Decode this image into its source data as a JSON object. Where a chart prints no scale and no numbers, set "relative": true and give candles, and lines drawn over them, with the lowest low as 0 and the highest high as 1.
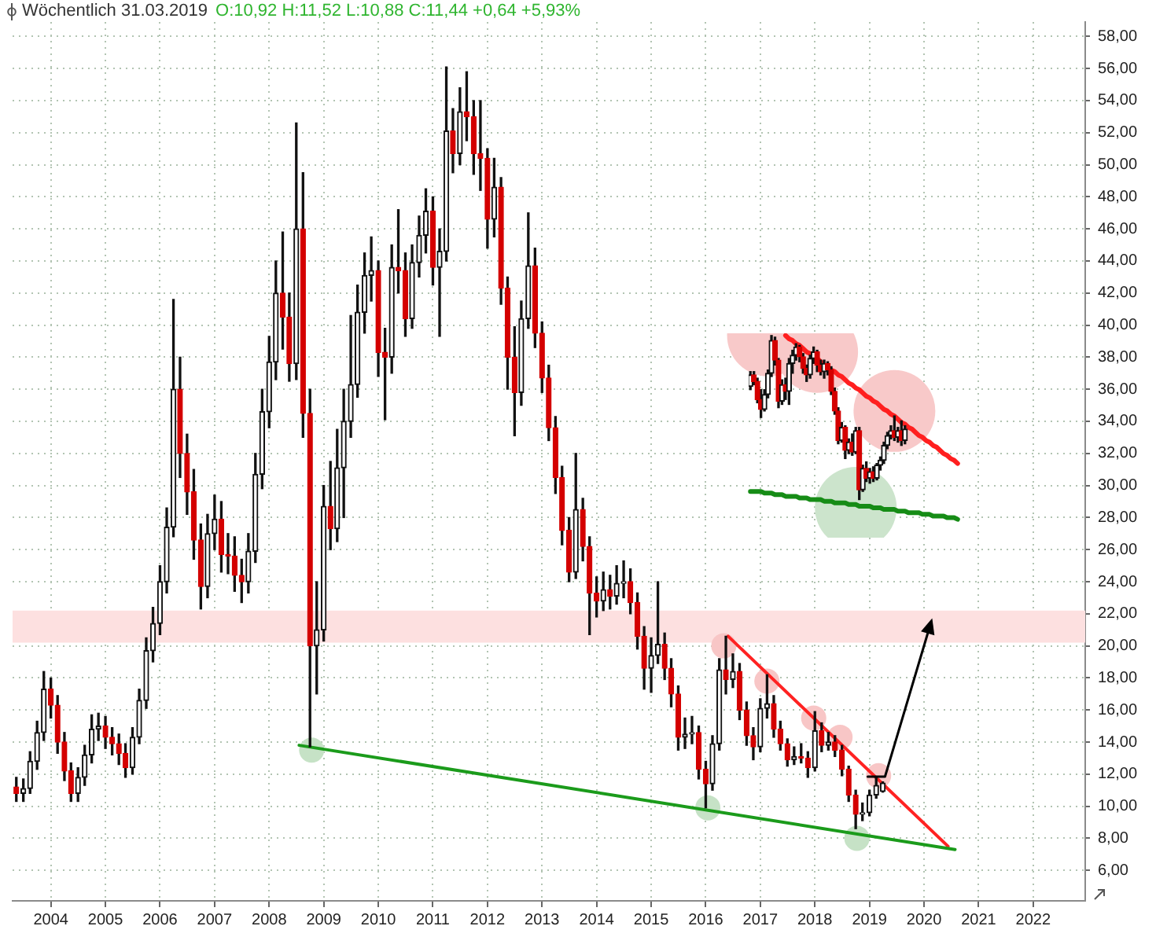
{
  "chart_data": [
    {
      "type": "candlestick",
      "title": "Wöchentlich 31.03.2019",
      "subtitle": "O:10,92 H:11,52 L:10,88 C:11,44 +0,64 +5,93%",
      "x": [
        "2003-05-15",
        "2003-07-01",
        "2003-08-15",
        "2003-10-01",
        "2003-11-15",
        "2004-01-01",
        "2004-02-15",
        "2004-04-01",
        "2004-05-15",
        "2004-07-01",
        "2004-08-15",
        "2004-10-01",
        "2004-11-15",
        "2005-01-01",
        "2005-02-15",
        "2005-04-01",
        "2005-05-15",
        "2005-07-01",
        "2005-08-15",
        "2005-10-01",
        "2005-11-15",
        "2006-01-01",
        "2006-02-15",
        "2006-04-01",
        "2006-05-15",
        "2006-07-01",
        "2006-08-15",
        "2006-10-01",
        "2006-11-15",
        "2007-01-01",
        "2007-02-15",
        "2007-04-01",
        "2007-05-15",
        "2007-07-01",
        "2007-08-15",
        "2007-10-01",
        "2007-11-15",
        "2008-01-01",
        "2008-02-15",
        "2008-04-01",
        "2008-05-15",
        "2008-07-01",
        "2008-08-15",
        "2008-10-01",
        "2008-11-15",
        "2009-01-01",
        "2009-02-15",
        "2009-04-01",
        "2009-05-15",
        "2009-07-01",
        "2009-08-15",
        "2009-10-01",
        "2009-11-15",
        "2010-01-01",
        "2010-02-15",
        "2010-04-01",
        "2010-05-15",
        "2010-07-01",
        "2010-08-15",
        "2010-10-01",
        "2010-11-15",
        "2011-01-01",
        "2011-02-15",
        "2011-04-01",
        "2011-05-15",
        "2011-07-01",
        "2011-08-15",
        "2011-10-01",
        "2011-11-15",
        "2012-01-01",
        "2012-02-15",
        "2012-04-01",
        "2012-05-15",
        "2012-07-01",
        "2012-08-15",
        "2012-10-01",
        "2012-11-15",
        "2013-01-01",
        "2013-02-15",
        "2013-04-01",
        "2013-05-15",
        "2013-07-01",
        "2013-08-15",
        "2013-10-01",
        "2013-11-15",
        "2014-01-01",
        "2014-02-15",
        "2014-04-01",
        "2014-05-15",
        "2014-07-01",
        "2014-08-15",
        "2014-10-01",
        "2014-11-15",
        "2015-01-01",
        "2015-02-15",
        "2015-04-01",
        "2015-05-15",
        "2015-07-01",
        "2015-08-15",
        "2015-10-01",
        "2015-11-15",
        "2016-01-01",
        "2016-02-15",
        "2016-04-01",
        "2016-05-15",
        "2016-07-01",
        "2016-08-15",
        "2016-10-01",
        "2016-11-15",
        "2017-01-01",
        "2017-02-15",
        "2017-04-01",
        "2017-05-15",
        "2017-07-01",
        "2017-08-15",
        "2017-10-01",
        "2017-11-15",
        "2018-01-01",
        "2018-02-15",
        "2018-04-01",
        "2018-05-15",
        "2018-07-01",
        "2018-08-15",
        "2018-10-01",
        "2018-11-15",
        "2019-01-01",
        "2019-02-15",
        "2019-03-31"
      ],
      "ohlc": [
        [
          11.2,
          11.8,
          10.3,
          10.8
        ],
        [
          10.8,
          11.7,
          10.3,
          11.1
        ],
        [
          11.1,
          13.4,
          10.8,
          12.8
        ],
        [
          12.8,
          15.3,
          12.3,
          14.6
        ],
        [
          14.6,
          18.4,
          14.1,
          17.3
        ],
        [
          17.3,
          18.0,
          15.5,
          16.3
        ],
        [
          16.3,
          16.9,
          13.3,
          14.0
        ],
        [
          14.0,
          14.6,
          11.6,
          12.2
        ],
        [
          12.2,
          12.7,
          10.3,
          10.8
        ],
        [
          10.8,
          12.4,
          10.3,
          11.8
        ],
        [
          11.8,
          13.8,
          11.3,
          13.2
        ],
        [
          13.2,
          15.7,
          12.7,
          14.8
        ],
        [
          14.8,
          15.8,
          14.1,
          15.0
        ],
        [
          15.0,
          15.6,
          13.6,
          14.3
        ],
        [
          14.3,
          14.9,
          13.2,
          13.9
        ],
        [
          13.9,
          14.5,
          12.6,
          13.3
        ],
        [
          13.3,
          13.9,
          11.8,
          12.4
        ],
        [
          12.4,
          14.9,
          12.0,
          14.3
        ],
        [
          14.3,
          17.3,
          13.9,
          16.6
        ],
        [
          16.6,
          20.5,
          16.1,
          19.7
        ],
        [
          19.7,
          22.4,
          19.0,
          21.4
        ],
        [
          21.4,
          25.0,
          20.7,
          24.0
        ],
        [
          24.0,
          28.6,
          23.3,
          27.4
        ],
        [
          27.4,
          41.6,
          26.8,
          36.0
        ],
        [
          36.0,
          38.0,
          30.5,
          32.0
        ],
        [
          32.0,
          33.2,
          28.2,
          29.6
        ],
        [
          29.6,
          31.0,
          25.4,
          26.6
        ],
        [
          26.6,
          27.6,
          22.3,
          23.7
        ],
        [
          23.7,
          28.2,
          23.0,
          27.0
        ],
        [
          27.0,
          29.4,
          26.0,
          27.9
        ],
        [
          27.9,
          29.0,
          24.6,
          25.7
        ],
        [
          25.7,
          27.0,
          24.5,
          25.6
        ],
        [
          25.6,
          26.8,
          23.4,
          24.4
        ],
        [
          24.4,
          25.4,
          22.7,
          24.0
        ],
        [
          24.0,
          27.0,
          23.3,
          25.9
        ],
        [
          25.9,
          32.0,
          25.2,
          30.7
        ],
        [
          30.7,
          36.0,
          29.8,
          34.6
        ],
        [
          34.6,
          39.3,
          33.6,
          37.7
        ],
        [
          37.7,
          44.0,
          36.6,
          42.0
        ],
        [
          42.0,
          45.8,
          38.5,
          40.5
        ],
        [
          40.5,
          42.0,
          36.5,
          37.6
        ],
        [
          37.6,
          52.6,
          36.6,
          46.0
        ],
        [
          46.0,
          49.5,
          33.0,
          34.5
        ],
        [
          34.5,
          36.0,
          13.7,
          20.0
        ],
        [
          20.0,
          24.0,
          17.0,
          21.0
        ],
        [
          21.0,
          30.0,
          20.3,
          28.7
        ],
        [
          28.7,
          31.5,
          26.0,
          27.3
        ],
        [
          27.3,
          33.5,
          26.5,
          31.1
        ],
        [
          31.1,
          36.0,
          28.0,
          34.0
        ],
        [
          34.0,
          40.6,
          33.0,
          36.3
        ],
        [
          36.3,
          42.5,
          35.5,
          40.8
        ],
        [
          40.8,
          44.5,
          39.5,
          43.1
        ],
        [
          43.1,
          45.5,
          41.5,
          43.4
        ],
        [
          43.4,
          44.0,
          36.8,
          38.3
        ],
        [
          38.3,
          39.8,
          34.1,
          38.0
        ],
        [
          38.0,
          45.0,
          37.0,
          43.6
        ],
        [
          43.6,
          47.2,
          42.0,
          43.4
        ],
        [
          43.4,
          44.5,
          39.3,
          40.4
        ],
        [
          40.4,
          45.0,
          39.8,
          43.9
        ],
        [
          43.9,
          46.8,
          43.0,
          45.6
        ],
        [
          45.6,
          48.5,
          44.5,
          47.1
        ],
        [
          47.1,
          48.0,
          42.5,
          43.6
        ],
        [
          43.6,
          46.0,
          39.3,
          44.6
        ],
        [
          44.6,
          56.1,
          44.0,
          52.1
        ],
        [
          52.1,
          53.5,
          49.5,
          50.7
        ],
        [
          50.7,
          54.8,
          50.0,
          53.3
        ],
        [
          53.3,
          55.8,
          51.5,
          53.0
        ],
        [
          53.0,
          54.0,
          49.4,
          50.7
        ],
        [
          50.7,
          54.0,
          48.4,
          50.4
        ],
        [
          50.4,
          51.0,
          44.8,
          46.6
        ],
        [
          46.6,
          50.4,
          45.5,
          48.6
        ],
        [
          48.6,
          49.2,
          41.3,
          42.3
        ],
        [
          42.3,
          43.0,
          36.0,
          38.0
        ],
        [
          38.0,
          39.9,
          33.1,
          35.8
        ],
        [
          35.8,
          41.5,
          35.0,
          40.4
        ],
        [
          40.4,
          47.0,
          39.8,
          43.7
        ],
        [
          43.7,
          44.8,
          38.6,
          39.5
        ],
        [
          39.5,
          40.2,
          35.8,
          36.7
        ],
        [
          36.7,
          37.5,
          32.8,
          33.6
        ],
        [
          33.6,
          34.3,
          29.5,
          30.5
        ],
        [
          30.5,
          31.2,
          26.3,
          27.2
        ],
        [
          27.2,
          28.0,
          24.0,
          24.6
        ],
        [
          24.6,
          32.0,
          24.2,
          28.5
        ],
        [
          28.5,
          29.2,
          25.3,
          26.2
        ],
        [
          26.2,
          26.8,
          20.7,
          23.3
        ],
        [
          23.3,
          24.3,
          21.8,
          22.8
        ],
        [
          22.8,
          24.6,
          22.2,
          23.5
        ],
        [
          23.5,
          24.4,
          22.3,
          23.1
        ],
        [
          23.1,
          25.0,
          22.6,
          23.9
        ],
        [
          23.9,
          25.3,
          23.0,
          24.0
        ],
        [
          24.0,
          24.8,
          22.0,
          22.7
        ],
        [
          22.7,
          23.3,
          19.8,
          20.6
        ],
        [
          20.6,
          21.2,
          17.3,
          18.6
        ],
        [
          18.6,
          20.5,
          17.1,
          19.4
        ],
        [
          19.4,
          24.0,
          18.9,
          20.1
        ],
        [
          20.1,
          20.8,
          17.9,
          18.6
        ],
        [
          18.6,
          19.2,
          16.2,
          17.0
        ],
        [
          17.0,
          17.5,
          13.5,
          14.3
        ],
        [
          14.3,
          15.5,
          13.6,
          14.5
        ],
        [
          14.5,
          15.6,
          13.9,
          14.6
        ],
        [
          14.6,
          15.0,
          11.7,
          12.3
        ],
        [
          12.3,
          12.8,
          9.9,
          11.4
        ],
        [
          11.4,
          14.4,
          11.0,
          13.9
        ],
        [
          13.9,
          19.2,
          13.5,
          18.5
        ],
        [
          18.5,
          20.6,
          17.0,
          17.9
        ],
        [
          17.9,
          19.5,
          17.4,
          18.4
        ],
        [
          18.4,
          18.9,
          15.4,
          16.0
        ],
        [
          16.0,
          16.5,
          13.8,
          14.4
        ],
        [
          14.4,
          14.9,
          12.9,
          13.7
        ],
        [
          13.7,
          16.7,
          13.4,
          16.1
        ],
        [
          16.1,
          18.2,
          15.5,
          16.4
        ],
        [
          16.4,
          16.9,
          14.3,
          14.8
        ],
        [
          14.8,
          15.3,
          13.5,
          13.9
        ],
        [
          13.9,
          14.2,
          12.5,
          12.9
        ],
        [
          12.9,
          13.7,
          12.6,
          13.1
        ],
        [
          13.1,
          13.9,
          12.7,
          13.0
        ],
        [
          13.0,
          13.4,
          11.8,
          12.4
        ],
        [
          12.4,
          15.9,
          12.2,
          14.7
        ],
        [
          14.7,
          15.2,
          13.4,
          13.8
        ],
        [
          13.8,
          14.6,
          13.5,
          14.0
        ],
        [
          14.0,
          14.4,
          13.1,
          13.5
        ],
        [
          13.5,
          13.8,
          11.9,
          12.3
        ],
        [
          12.3,
          12.5,
          10.3,
          10.7
        ],
        [
          10.7,
          11.0,
          8.6,
          9.5
        ],
        [
          9.5,
          10.2,
          9.1,
          9.6
        ],
        [
          9.6,
          11.0,
          9.4,
          10.7
        ],
        [
          10.7,
          11.8,
          10.5,
          11.3
        ],
        [
          10.92,
          11.52,
          10.88,
          11.44
        ]
      ],
      "colors": [
        "#d40000",
        "#111111",
        "#111111",
        "#111111",
        "#111111",
        "#d40000",
        "#d40000",
        "#d40000",
        "#d40000",
        "#111111",
        "#111111",
        "#111111",
        "#111111",
        "#d40000",
        "#d40000",
        "#d40000",
        "#d40000",
        "#111111",
        "#111111",
        "#111111",
        "#111111",
        "#111111",
        "#111111",
        "#111111",
        "#d40000",
        "#d40000",
        "#d40000",
        "#d40000",
        "#111111",
        "#111111",
        "#d40000",
        "#d40000",
        "#d40000",
        "#d40000",
        "#111111",
        "#111111",
        "#111111",
        "#111111",
        "#111111",
        "#d40000",
        "#d40000",
        "#111111",
        "#d40000",
        "#d40000",
        "#111111",
        "#111111",
        "#d40000",
        "#111111",
        "#111111",
        "#111111",
        "#111111",
        "#111111",
        "#111111",
        "#d40000",
        "#d40000",
        "#111111",
        "#d40000",
        "#d40000",
        "#111111",
        "#111111",
        "#111111",
        "#d40000",
        "#111111",
        "#111111",
        "#d40000",
        "#111111",
        "#d40000",
        "#d40000",
        "#d40000",
        "#d40000",
        "#111111",
        "#d40000",
        "#d40000",
        "#d40000",
        "#111111",
        "#111111",
        "#d40000",
        "#d40000",
        "#d40000",
        "#d40000",
        "#d40000",
        "#d40000",
        "#111111",
        "#d40000",
        "#d40000",
        "#d40000",
        "#111111",
        "#d40000",
        "#111111",
        "#111111",
        "#d40000",
        "#d40000",
        "#d40000",
        "#111111",
        "#111111",
        "#d40000",
        "#d40000",
        "#d40000",
        "#111111",
        "#111111",
        "#d40000",
        "#d40000",
        "#111111",
        "#111111",
        "#d40000",
        "#111111",
        "#d40000",
        "#d40000",
        "#d40000",
        "#111111",
        "#111111",
        "#d40000",
        "#d40000",
        "#d40000",
        "#111111",
        "#d40000",
        "#d40000",
        "#111111",
        "#d40000",
        "#111111",
        "#d40000",
        "#d40000",
        "#d40000",
        "#d40000",
        "#111111",
        "#111111",
        "#111111",
        "#111111"
      ],
      "series": [
        {
          "type": "line",
          "color": "#1b9b1b",
          "x": [
            "2008-07-20",
            "2020-07-27"
          ],
          "values": [
            13.8,
            7.3
          ]
        },
        {
          "type": "line",
          "color": "#ff2222",
          "x": [
            "2016-05-30",
            "2020-06-10"
          ],
          "values": [
            20.6,
            7.5
          ]
        },
        {
          "type": "scatter",
          "color": "#f8c6c6",
          "marker": "circle",
          "x": [
            "2016-05-01",
            "2017-02-14",
            "2017-12-24",
            "2018-06-18",
            "2019-03-03"
          ],
          "values": [
            20.0,
            17.8,
            15.5,
            14.3,
            11.9
          ]
        },
        {
          "type": "scatter",
          "color": "#c6e2c6",
          "marker": "circle",
          "x": [
            "2008-10-12",
            "2016-01-15",
            "2018-10-09"
          ],
          "values": [
            13.5,
            9.9,
            8.0
          ]
        }
      ],
      "bands": [
        {
          "axis": "y",
          "from": 20.2,
          "to": 22.2,
          "color": "#fde0e0"
        }
      ],
      "xlim": [
        "2003-04-20",
        "2022-12-15"
      ],
      "xticks": [
        "2004",
        "2005",
        "2006",
        "2007",
        "2008",
        "2009",
        "2010",
        "2011",
        "2012",
        "2013",
        "2014",
        "2015",
        "2016",
        "2017",
        "2018",
        "2019",
        "2020",
        "2021",
        "2022"
      ],
      "ylim": [
        4.1,
        58.9
      ],
      "yticks": [
        {
          "value": 6,
          "label": "6,00"
        },
        {
          "value": 8,
          "label": "8,00"
        },
        {
          "value": 10,
          "label": "10,00"
        },
        {
          "value": 12,
          "label": "12,00"
        },
        {
          "value": 14,
          "label": "14,00"
        },
        {
          "value": 16,
          "label": "16,00"
        },
        {
          "value": 18,
          "label": "18,00"
        },
        {
          "value": 20,
          "label": "20,00"
        },
        {
          "value": 22,
          "label": "22,00"
        },
        {
          "value": 24,
          "label": "24,00"
        },
        {
          "value": 26,
          "label": "26,00"
        },
        {
          "value": 28,
          "label": "28,00"
        },
        {
          "value": 30,
          "label": "30,00"
        },
        {
          "value": 32,
          "label": "32,00"
        },
        {
          "value": 34,
          "label": "34,00"
        },
        {
          "value": 36,
          "label": "36,00"
        },
        {
          "value": 38,
          "label": "38,00"
        },
        {
          "value": 40,
          "label": "40,00"
        },
        {
          "value": 42,
          "label": "42,00"
        },
        {
          "value": 44,
          "label": "44,00"
        },
        {
          "value": 46,
          "label": "46,00"
        },
        {
          "value": 48,
          "label": "48,00"
        },
        {
          "value": 50,
          "label": "50,00"
        },
        {
          "value": 52,
          "label": "52,00"
        },
        {
          "value": 54,
          "label": "54,00"
        },
        {
          "value": 56,
          "label": "56,00"
        },
        {
          "value": 58,
          "label": "58,00"
        }
      ],
      "grid": true
    },
    {
      "type": "candlestick",
      "relative": true,
      "tick_labels": false,
      "categories": [
        null,
        null,
        null,
        null,
        null,
        null,
        null,
        null,
        null,
        null,
        null,
        null,
        null,
        null,
        null,
        null,
        null,
        null,
        null,
        null,
        null,
        null,
        null,
        null,
        null,
        null,
        null,
        null,
        null,
        null,
        null,
        null,
        null,
        null,
        null,
        null,
        null,
        null,
        null,
        null,
        null,
        null,
        null,
        null,
        null,
        null,
        null,
        null,
        null,
        null,
        null,
        null,
        null,
        null,
        null,
        null,
        null,
        null,
        null,
        null
      ],
      "ohlc": [
        [
          0.69,
          0.78,
          0.67,
          0.76
        ],
        [
          0.76,
          0.78,
          0.7,
          0.72
        ],
        [
          0.72,
          0.74,
          0.59,
          0.61
        ],
        [
          0.61,
          0.67,
          0.5,
          0.55
        ],
        [
          0.55,
          0.67,
          0.54,
          0.64
        ],
        [
          0.64,
          0.79,
          0.62,
          0.77
        ],
        [
          0.77,
          1.0,
          0.75,
          0.97
        ],
        [
          0.97,
          0.99,
          0.82,
          0.85
        ],
        [
          0.85,
          0.86,
          0.56,
          0.6
        ],
        [
          0.6,
          0.73,
          0.58,
          0.7
        ],
        [
          0.7,
          0.74,
          0.61,
          0.66
        ],
        [
          0.66,
          0.86,
          0.58,
          0.83
        ],
        [
          0.83,
          0.91,
          0.77,
          0.88
        ],
        [
          0.88,
          0.95,
          0.85,
          0.93
        ],
        [
          0.93,
          0.94,
          0.84,
          0.87
        ],
        [
          0.87,
          0.89,
          0.77,
          0.8
        ],
        [
          0.8,
          0.82,
          0.72,
          0.76
        ],
        [
          0.76,
          0.88,
          0.74,
          0.86
        ],
        [
          0.86,
          0.93,
          0.83,
          0.9
        ],
        [
          0.9,
          0.91,
          0.78,
          0.82
        ],
        [
          0.82,
          0.85,
          0.76,
          0.78
        ],
        [
          0.78,
          0.85,
          0.74,
          0.83
        ],
        [
          0.83,
          0.84,
          0.76,
          0.79
        ],
        [
          0.79,
          0.81,
          0.64,
          0.66
        ],
        [
          0.66,
          0.68,
          0.52,
          0.54
        ],
        [
          0.54,
          0.56,
          0.34,
          0.36
        ],
        [
          0.36,
          0.47,
          0.35,
          0.44
        ],
        [
          0.44,
          0.45,
          0.25,
          0.3
        ],
        [
          0.3,
          0.37,
          0.28,
          0.35
        ],
        [
          0.35,
          0.4,
          0.27,
          0.29
        ],
        [
          0.29,
          0.44,
          0.28,
          0.42
        ],
        [
          0.42,
          0.44,
          0.0,
          0.06
        ],
        [
          0.06,
          0.21,
          0.05,
          0.19
        ],
        [
          0.19,
          0.23,
          0.11,
          0.13
        ],
        [
          0.13,
          0.19,
          0.1,
          0.17
        ],
        [
          0.17,
          0.2,
          0.11,
          0.13
        ],
        [
          0.13,
          0.22,
          0.12,
          0.21
        ],
        [
          0.21,
          0.26,
          0.18,
          0.24
        ],
        [
          0.24,
          0.35,
          0.22,
          0.33
        ],
        [
          0.33,
          0.41,
          0.31,
          0.39
        ],
        [
          0.39,
          0.45,
          0.37,
          0.42
        ],
        [
          0.42,
          0.51,
          0.36,
          0.38
        ],
        [
          0.38,
          0.44,
          0.35,
          0.42
        ],
        [
          0.42,
          0.48,
          0.33,
          0.36
        ],
        [
          0.36,
          0.45,
          0.34,
          0.43
        ],
        null,
        null,
        null,
        null,
        null,
        null,
        null,
        null,
        null,
        null,
        null,
        null,
        null,
        null,
        null
      ],
      "colors": [
        "#111111",
        "#d40000",
        "#d40000",
        "#d40000",
        "#111111",
        "#111111",
        "#111111",
        "#d40000",
        "#d40000",
        "#111111",
        "#d40000",
        "#111111",
        "#111111",
        "#111111",
        "#d40000",
        "#d40000",
        "#d40000",
        "#111111",
        "#111111",
        "#d40000",
        "#d40000",
        "#111111",
        "#d40000",
        "#d40000",
        "#d40000",
        "#d40000",
        "#111111",
        "#d40000",
        "#111111",
        "#d40000",
        "#111111",
        "#d40000",
        "#111111",
        "#d40000",
        "#111111",
        "#d40000",
        "#111111",
        "#111111",
        "#111111",
        "#111111",
        "#111111",
        "#d40000",
        "#111111",
        "#d40000",
        "#111111",
        null,
        null,
        null,
        null,
        null,
        null,
        null,
        null,
        null,
        null,
        null,
        null,
        null,
        null,
        null
      ],
      "series": [
        {
          "type": "line",
          "color": "#ff1f1f",
          "values": [
            null,
            null,
            null,
            null,
            null,
            null,
            null,
            null,
            null,
            null,
            1.0,
            0.98,
            0.97,
            0.95,
            0.94,
            0.92,
            0.9,
            0.89,
            0.87,
            0.86,
            0.84,
            0.82,
            0.81,
            0.79,
            0.78,
            0.76,
            0.75,
            0.73,
            0.71,
            0.7,
            0.68,
            0.67,
            0.65,
            0.63,
            0.62,
            0.6,
            0.59,
            0.57,
            0.55,
            0.54,
            0.52,
            0.51,
            0.49,
            0.47,
            0.46,
            0.44,
            0.43,
            0.41,
            0.39,
            0.38,
            0.36,
            0.35,
            0.33,
            0.32,
            0.3,
            0.28,
            0.27,
            0.25,
            0.24,
            0.22
          ]
        },
        {
          "type": "line",
          "color": "#168c16",
          "values": [
            0.05,
            0.05,
            0.05,
            0.05,
            0.04,
            0.04,
            0.04,
            0.03,
            0.03,
            0.03,
            0.02,
            0.02,
            0.02,
            0.02,
            0.01,
            0.01,
            0.01,
            0,
            0,
            0,
            0,
            -0.01,
            -0.01,
            -0.01,
            -0.02,
            -0.02,
            -0.02,
            -0.02,
            -0.03,
            -0.03,
            -0.03,
            -0.04,
            -0.04,
            -0.04,
            -0.04,
            -0.05,
            -0.05,
            -0.05,
            -0.06,
            -0.06,
            -0.06,
            -0.06,
            -0.07,
            -0.07,
            -0.07,
            -0.08,
            -0.08,
            -0.08,
            -0.08,
            -0.09,
            -0.09,
            -0.09,
            -0.1,
            -0.1,
            -0.1,
            -0.1,
            -0.11,
            -0.11,
            -0.11,
            -0.12
          ]
        },
        {
          "type": "scatter",
          "color": "#f8c9c9",
          "marker": "circle",
          "values": [
            null,
            null,
            null,
            null,
            null,
            1.0,
            null,
            null,
            null,
            null,
            null,
            null,
            null,
            null,
            null,
            null,
            null,
            null,
            null,
            0.9,
            null,
            null,
            null,
            null,
            null,
            null,
            null,
            null,
            null,
            null,
            null,
            null,
            null,
            null,
            null,
            null,
            null,
            null,
            null,
            null,
            null,
            0.54,
            null,
            null,
            null,
            null,
            null,
            null,
            null,
            null,
            null,
            null,
            null,
            null,
            null,
            null,
            null,
            null,
            null,
            null
          ]
        },
        {
          "type": "scatter",
          "color": "#cce4cc",
          "marker": "circle",
          "values": [
            null,
            null,
            null,
            null,
            null,
            null,
            null,
            null,
            null,
            null,
            null,
            null,
            null,
            null,
            null,
            null,
            null,
            null,
            null,
            null,
            null,
            null,
            null,
            null,
            null,
            null,
            null,
            null,
            null,
            null,
            -0.05,
            null,
            null,
            null,
            null,
            null,
            null,
            null,
            null,
            null,
            null,
            null,
            null,
            null,
            null,
            null,
            null,
            null,
            null,
            null,
            null,
            null,
            null,
            null,
            null,
            null,
            null,
            null,
            null,
            null
          ]
        }
      ]
    }
  ]
}
